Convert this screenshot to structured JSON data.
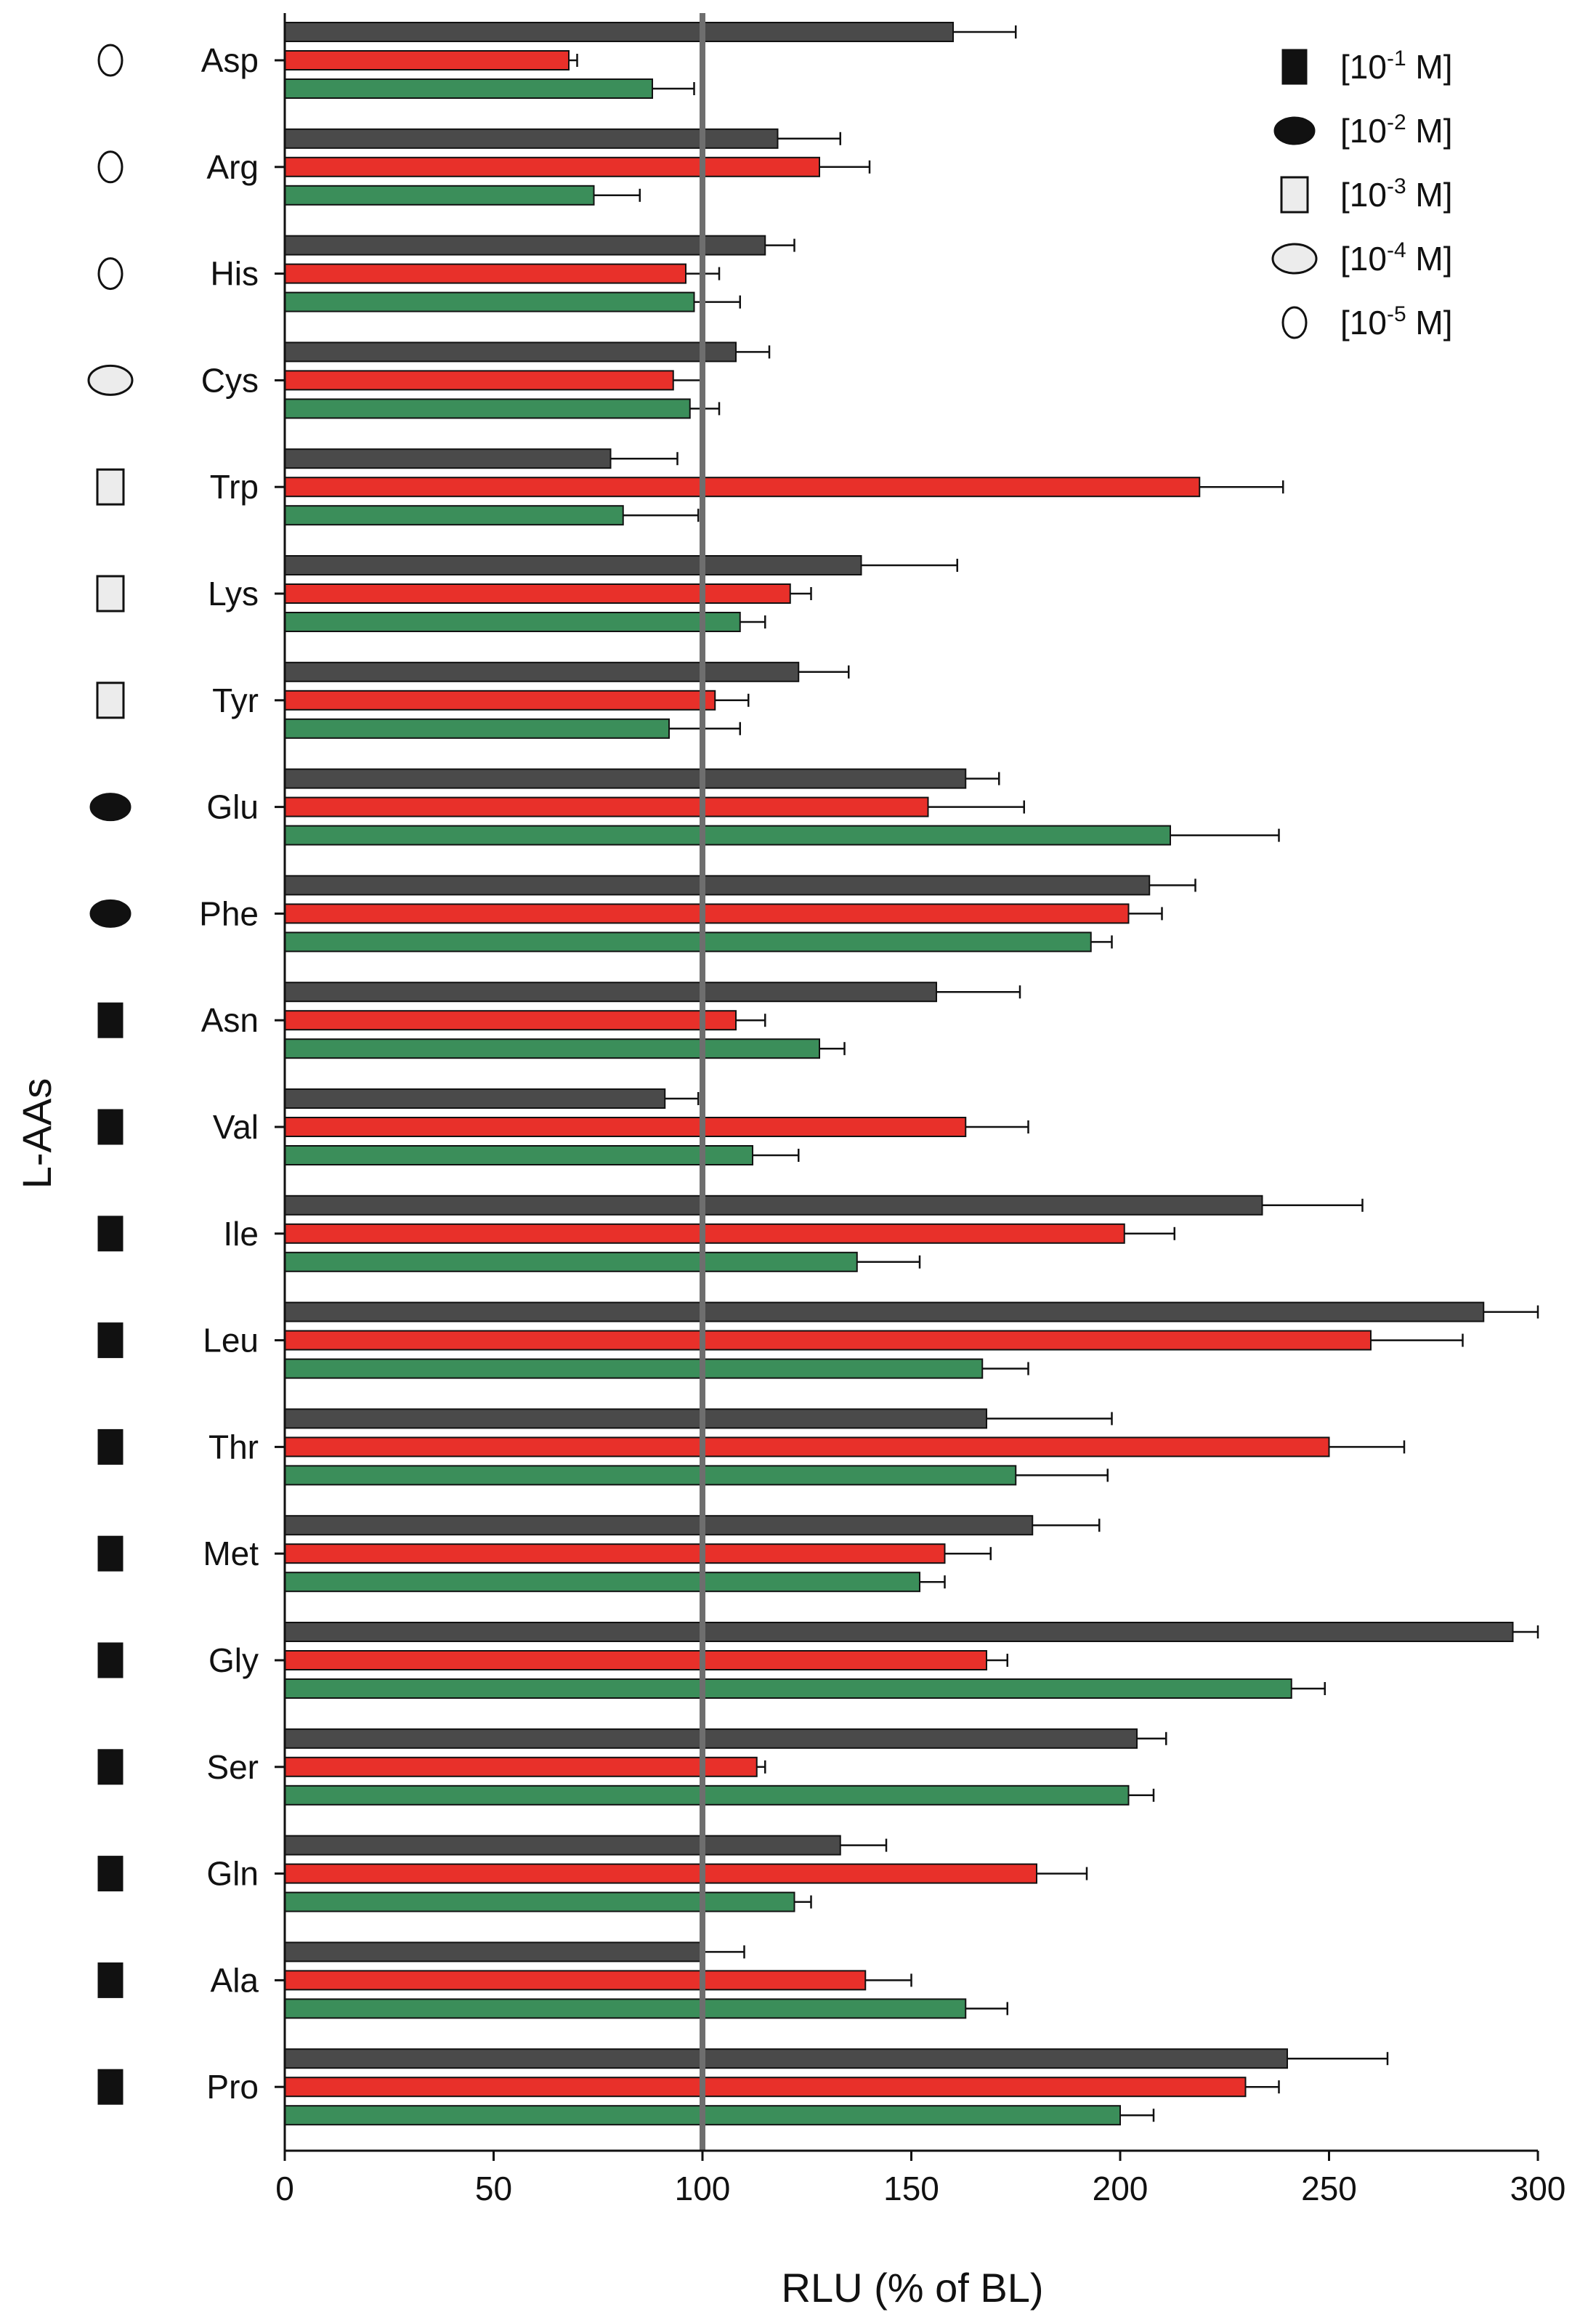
{
  "chart_data": {
    "type": "bar",
    "orientation": "horizontal",
    "xlabel": "RLU (% of BL)",
    "ylabel": "L-AAs",
    "xlim": [
      0,
      300
    ],
    "xticks": [
      "0",
      "50",
      "100",
      "150",
      "200",
      "250",
      "300"
    ],
    "reference_line": 100,
    "categories": [
      "Asp",
      "Arg",
      "His",
      "Cys",
      "Trp",
      "Lys",
      "Tyr",
      "Glu",
      "Phe",
      "Asn",
      "Val",
      "Ile",
      "Leu",
      "Thr",
      "Met",
      "Gly",
      "Ser",
      "Gln",
      "Ala",
      "Pro"
    ],
    "category_markers": [
      "small-oval",
      "small-oval",
      "small-oval",
      "oval",
      "rect-light",
      "rect-light",
      "rect-light",
      "ellipse-black",
      "ellipse-black",
      "rect-black",
      "rect-black",
      "rect-black",
      "rect-black",
      "rect-black",
      "rect-black",
      "rect-black",
      "rect-black",
      "rect-black",
      "rect-black",
      "rect-black"
    ],
    "series": [
      {
        "name": "series-dark",
        "color": "#4a4a4a",
        "values": [
          160,
          118,
          115,
          108,
          78,
          138,
          123,
          163,
          207,
          156,
          91,
          234,
          287,
          168,
          179,
          294,
          204,
          133,
          100,
          240
        ],
        "errors": [
          15,
          15,
          7,
          8,
          16,
          23,
          12,
          8,
          11,
          20,
          8,
          24,
          13,
          30,
          16,
          6,
          7,
          11,
          10,
          24
        ]
      },
      {
        "name": "series-red",
        "color": "#e8302a",
        "values": [
          68,
          128,
          96,
          93,
          219,
          121,
          103,
          154,
          202,
          108,
          163,
          201,
          260,
          250,
          158,
          168,
          113,
          180,
          139,
          230
        ],
        "errors": [
          2,
          12,
          8,
          7,
          20,
          5,
          8,
          23,
          8,
          7,
          15,
          12,
          22,
          18,
          11,
          5,
          2,
          12,
          11,
          8
        ]
      },
      {
        "name": "series-green",
        "color": "#3b8e5a",
        "values": [
          88,
          74,
          98,
          97,
          81,
          109,
          92,
          212,
          193,
          128,
          112,
          137,
          167,
          175,
          152,
          241,
          202,
          122,
          163,
          200
        ],
        "errors": [
          10,
          11,
          11,
          7,
          18,
          6,
          17,
          26,
          5,
          6,
          11,
          15,
          11,
          22,
          6,
          8,
          6,
          4,
          10,
          8
        ]
      }
    ],
    "legend": [
      {
        "marker": "rect-black",
        "prefix": "[10",
        "exp": "-1",
        "suffix": " M]"
      },
      {
        "marker": "ellipse-black",
        "prefix": "[10",
        "exp": "-2",
        "suffix": " M]"
      },
      {
        "marker": "rect-light",
        "prefix": "[10",
        "exp": "-3",
        "suffix": " M]"
      },
      {
        "marker": "oval",
        "prefix": "[10",
        "exp": "-4",
        "suffix": " M]"
      },
      {
        "marker": "small-oval",
        "prefix": "[10",
        "exp": "-5",
        "suffix": " M]"
      }
    ],
    "legend_position": "top-right"
  }
}
